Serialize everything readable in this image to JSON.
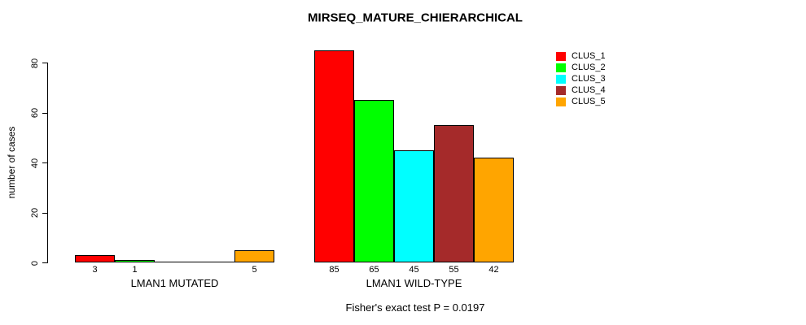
{
  "chart_data": {
    "type": "bar",
    "title": "MIRSEQ_MATURE_CHIERARCHICAL",
    "ylabel": "number of cases",
    "xlabel": "",
    "ylim": [
      0,
      85
    ],
    "yticks": [
      0,
      20,
      40,
      60,
      80
    ],
    "grid": false,
    "legend_position": "topright",
    "series": [
      {
        "name": "CLUS_1",
        "color": "#ff0000"
      },
      {
        "name": "CLUS_2",
        "color": "#00ff00"
      },
      {
        "name": "CLUS_3",
        "color": "#00ffff"
      },
      {
        "name": "CLUS_4",
        "color": "#a52a2a"
      },
      {
        "name": "CLUS_5",
        "color": "#ffa500"
      }
    ],
    "groups": [
      {
        "label": "LMAN1 MUTATED",
        "values": [
          3,
          1,
          0,
          0,
          5
        ],
        "bar_labels": [
          "3",
          "1",
          "",
          "",
          "5"
        ]
      },
      {
        "label": "LMAN1 WILD-TYPE",
        "values": [
          85,
          65,
          45,
          55,
          42
        ],
        "bar_labels": [
          "85",
          "65",
          "45",
          "55",
          "42"
        ]
      }
    ],
    "annotation": "Fisher's exact test P = 0.0197"
  }
}
